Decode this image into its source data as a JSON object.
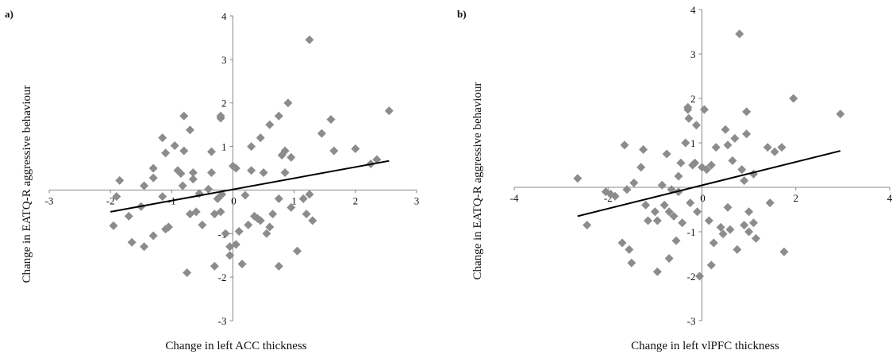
{
  "marker_color": "#8c8c8c",
  "line_color": "#000000",
  "axis_color": "#888888",
  "chart_data": [
    {
      "type": "scatter",
      "panel_label": "a)",
      "xlabel": "Change in left ACC thickness",
      "ylabel": "Change in EATQ-R aggressive behaviour",
      "xlim": [
        -3,
        3
      ],
      "ylim": [
        -3,
        4
      ],
      "x_ticks": [
        -3,
        -2,
        -1,
        0,
        1,
        2,
        3
      ],
      "y_ticks": [
        -3,
        -2,
        -1,
        0,
        1,
        2,
        3,
        4
      ],
      "grid": false,
      "trendline": {
        "x1": -2.0,
        "y1": -0.5,
        "x2": 2.55,
        "y2": 0.67
      },
      "points": [
        [
          -1.85,
          0.22
        ],
        [
          -1.9,
          -0.15
        ],
        [
          -1.95,
          -0.82
        ],
        [
          -1.7,
          -0.6
        ],
        [
          -1.65,
          -1.2
        ],
        [
          -1.5,
          -0.38
        ],
        [
          -1.45,
          0.1
        ],
        [
          -1.45,
          -1.3
        ],
        [
          -1.3,
          0.28
        ],
        [
          -1.3,
          0.5
        ],
        [
          -1.3,
          -1.05
        ],
        [
          -1.15,
          1.2
        ],
        [
          -1.15,
          -0.15
        ],
        [
          -1.1,
          0.85
        ],
        [
          -1.05,
          -0.85
        ],
        [
          -1.1,
          -0.9
        ],
        [
          -0.95,
          1.02
        ],
        [
          -0.9,
          0.45
        ],
        [
          -0.85,
          0.38
        ],
        [
          -0.82,
          0.1
        ],
        [
          -0.8,
          0.9
        ],
        [
          -0.8,
          1.7
        ],
        [
          -0.75,
          -1.9
        ],
        [
          -0.7,
          1.38
        ],
        [
          -0.7,
          -0.55
        ],
        [
          -0.65,
          0.25
        ],
        [
          -0.65,
          0.4
        ],
        [
          -0.6,
          -0.5
        ],
        [
          -0.55,
          -0.08
        ],
        [
          -0.5,
          -0.8
        ],
        [
          -0.4,
          0.02
        ],
        [
          -0.35,
          0.88
        ],
        [
          -0.35,
          0.4
        ],
        [
          -0.3,
          -1.75
        ],
        [
          -0.3,
          -0.55
        ],
        [
          -0.25,
          -0.2
        ],
        [
          -0.2,
          1.65
        ],
        [
          -0.2,
          1.7
        ],
        [
          -0.2,
          -0.5
        ],
        [
          -0.18,
          -0.1
        ],
        [
          -0.12,
          -1.0
        ],
        [
          -0.05,
          -1.3
        ],
        [
          -0.05,
          -1.5
        ],
        [
          0.0,
          0.55
        ],
        [
          0.05,
          0.5
        ],
        [
          0.05,
          -1.25
        ],
        [
          0.15,
          -1.7
        ],
        [
          0.1,
          -0.95
        ],
        [
          0.2,
          -0.12
        ],
        [
          0.25,
          -0.8
        ],
        [
          0.3,
          1.0
        ],
        [
          0.3,
          0.45
        ],
        [
          0.35,
          -0.6
        ],
        [
          0.4,
          -0.65
        ],
        [
          0.45,
          1.2
        ],
        [
          0.45,
          -0.7
        ],
        [
          0.5,
          0.4
        ],
        [
          0.55,
          -1.0
        ],
        [
          0.6,
          -0.85
        ],
        [
          0.6,
          1.5
        ],
        [
          0.65,
          -0.55
        ],
        [
          0.75,
          -1.75
        ],
        [
          0.75,
          1.7
        ],
        [
          0.75,
          -0.2
        ],
        [
          0.8,
          0.8
        ],
        [
          0.85,
          0.9
        ],
        [
          0.85,
          0.4
        ],
        [
          0.9,
          2.0
        ],
        [
          0.95,
          0.75
        ],
        [
          0.95,
          -0.4
        ],
        [
          1.05,
          -1.4
        ],
        [
          1.15,
          -0.2
        ],
        [
          1.2,
          -0.55
        ],
        [
          1.25,
          3.45
        ],
        [
          1.25,
          -0.1
        ],
        [
          1.3,
          -0.7
        ],
        [
          1.45,
          1.3
        ],
        [
          1.6,
          1.62
        ],
        [
          1.65,
          0.9
        ],
        [
          2.0,
          0.95
        ],
        [
          2.25,
          0.6
        ],
        [
          2.35,
          0.7
        ],
        [
          2.55,
          1.82
        ]
      ]
    },
    {
      "type": "scatter",
      "panel_label": "b)",
      "xlabel": "Change in left vlPFC thickness",
      "ylabel": "Change in EATQ-R aggressive behaviour",
      "xlim": [
        -4,
        4
      ],
      "ylim": [
        -3,
        4
      ],
      "x_ticks": [
        -4,
        -2,
        0,
        2,
        4
      ],
      "y_ticks": [
        -3,
        -2,
        -1,
        0,
        1,
        2,
        3,
        4
      ],
      "grid": false,
      "trendline": {
        "x1": -2.65,
        "y1": -0.65,
        "x2": 2.95,
        "y2": 0.82
      },
      "points": [
        [
          -2.65,
          0.2
        ],
        [
          -2.45,
          -0.85
        ],
        [
          -2.05,
          -0.1
        ],
        [
          -1.95,
          -0.15
        ],
        [
          -1.85,
          -0.2
        ],
        [
          -1.7,
          -1.25
        ],
        [
          -1.65,
          0.95
        ],
        [
          -1.6,
          -0.05
        ],
        [
          -1.55,
          -1.4
        ],
        [
          -1.5,
          -1.7
        ],
        [
          -1.45,
          0.1
        ],
        [
          -1.3,
          0.45
        ],
        [
          -1.25,
          0.85
        ],
        [
          -1.2,
          -0.4
        ],
        [
          -1.15,
          -0.75
        ],
        [
          -1.0,
          -0.55
        ],
        [
          -0.95,
          -1.9
        ],
        [
          -0.95,
          -0.75
        ],
        [
          -0.85,
          0.05
        ],
        [
          -0.8,
          -0.4
        ],
        [
          -0.75,
          0.75
        ],
        [
          -0.7,
          -1.6
        ],
        [
          -0.7,
          -0.55
        ],
        [
          -0.65,
          -0.05
        ],
        [
          -0.6,
          -0.65
        ],
        [
          -0.55,
          -1.2
        ],
        [
          -0.5,
          0.25
        ],
        [
          -0.5,
          -0.1
        ],
        [
          -0.45,
          0.55
        ],
        [
          -0.42,
          -0.8
        ],
        [
          -0.35,
          1.0
        ],
        [
          -0.3,
          1.8
        ],
        [
          -0.3,
          1.75
        ],
        [
          -0.28,
          1.55
        ],
        [
          -0.25,
          -0.35
        ],
        [
          -0.2,
          0.5
        ],
        [
          -0.15,
          0.55
        ],
        [
          -0.12,
          1.4
        ],
        [
          -0.1,
          -0.55
        ],
        [
          -0.05,
          -2.0
        ],
        [
          0.0,
          0.45
        ],
        [
          0.05,
          1.75
        ],
        [
          0.1,
          0.4
        ],
        [
          0.15,
          -0.75
        ],
        [
          0.2,
          -1.75
        ],
        [
          0.2,
          0.5
        ],
        [
          0.25,
          -1.25
        ],
        [
          0.3,
          0.9
        ],
        [
          0.4,
          -0.9
        ],
        [
          0.45,
          -1.05
        ],
        [
          0.5,
          1.3
        ],
        [
          0.55,
          0.95
        ],
        [
          0.55,
          -0.45
        ],
        [
          0.6,
          -0.95
        ],
        [
          0.65,
          0.6
        ],
        [
          0.7,
          1.1
        ],
        [
          0.75,
          -1.4
        ],
        [
          0.8,
          3.45
        ],
        [
          0.85,
          0.4
        ],
        [
          0.9,
          0.15
        ],
        [
          0.9,
          -0.85
        ],
        [
          0.95,
          1.7
        ],
        [
          0.95,
          1.2
        ],
        [
          1.0,
          -0.55
        ],
        [
          1.0,
          -1.0
        ],
        [
          1.1,
          0.3
        ],
        [
          1.1,
          -0.8
        ],
        [
          1.15,
          -1.15
        ],
        [
          1.4,
          0.9
        ],
        [
          1.45,
          -0.35
        ],
        [
          1.55,
          0.8
        ],
        [
          1.7,
          0.9
        ],
        [
          1.75,
          -1.45
        ],
        [
          1.95,
          2.0
        ],
        [
          2.95,
          1.65
        ]
      ]
    }
  ]
}
